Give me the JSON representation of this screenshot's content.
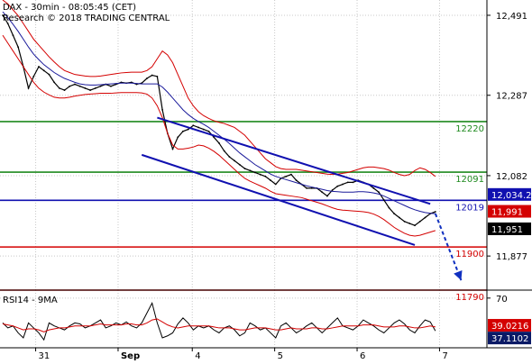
{
  "header": {
    "line1": "DAX - 30min - 08:05:45 (CET)",
    "line2": "Research © 2018 TRADING CENTRAL"
  },
  "colors": {
    "price": "#000000",
    "bollinger": "#d40000",
    "moving_average": "#1a1a9a",
    "support": "#d40000",
    "resistance": "#1f8a1f",
    "pivot": "#1010b0",
    "arrow": "#1030c0",
    "rsi": "#000000",
    "rsi_ma": "#d40000",
    "grid": "#c8c8c8"
  },
  "chart_data": [
    {
      "type": "line",
      "title": "",
      "ylim": [
        11790,
        12530
      ],
      "y_ticks": [
        "12,491",
        "12,287",
        "12,082",
        "11,877"
      ],
      "x_ticks": [
        "31",
        "Sep",
        "4",
        "5",
        "6",
        "7"
      ],
      "x_count": 85,
      "series": [
        {
          "name": "",
          "role": "price",
          "values": [
            12491,
            12470,
            12440,
            12410,
            12360,
            12305,
            12335,
            12360,
            12350,
            12340,
            12320,
            12305,
            12300,
            12310,
            12315,
            12310,
            12305,
            12300,
            12305,
            12310,
            12315,
            12310,
            12315,
            12320,
            12318,
            12320,
            12315,
            12318,
            12330,
            12338,
            12335,
            12250,
            12190,
            12150,
            12180,
            12195,
            12200,
            12210,
            12205,
            12200,
            12195,
            12180,
            12165,
            12145,
            12130,
            12120,
            12110,
            12100,
            12095,
            12090,
            12085,
            12080,
            12070,
            12060,
            12075,
            12080,
            12085,
            12070,
            12060,
            12050,
            12050,
            12050,
            12040,
            12030,
            12045,
            12055,
            12060,
            12065,
            12065,
            12070,
            12065,
            12060,
            12050,
            12040,
            12020,
            12000,
            11985,
            11975,
            11965,
            11960,
            11955,
            11965,
            11975,
            11985,
            11990
          ]
        },
        {
          "name": "",
          "role": "moving-average",
          "values": [
            12500,
            12485,
            12468,
            12450,
            12430,
            12410,
            12392,
            12378,
            12365,
            12355,
            12345,
            12337,
            12330,
            12325,
            12320,
            12316,
            12314,
            12313,
            12313,
            12314,
            12315,
            12316,
            12317,
            12318,
            12318,
            12318,
            12317,
            12316,
            12316,
            12316,
            12316,
            12308,
            12295,
            12280,
            12265,
            12250,
            12238,
            12228,
            12220,
            12213,
            12205,
            12195,
            12185,
            12175,
            12164,
            12152,
            12140,
            12130,
            12120,
            12110,
            12102,
            12094,
            12086,
            12080,
            12076,
            12072,
            12068,
            12064,
            12060,
            12056,
            12053,
            12050,
            12047,
            12044,
            12042,
            12041,
            12040,
            12040,
            12040,
            12041,
            12041,
            12040,
            12038,
            12035,
            12030,
            12024,
            12018,
            12012,
            12006,
            12000,
            11995,
            11991,
            11988,
            11986,
            11985
          ]
        },
        {
          "name": "",
          "role": "bollinger-upper",
          "values": [
            12530,
            12520,
            12505,
            12490,
            12470,
            12450,
            12430,
            12415,
            12400,
            12385,
            12372,
            12360,
            12350,
            12345,
            12340,
            12338,
            12336,
            12335,
            12335,
            12336,
            12338,
            12340,
            12342,
            12344,
            12345,
            12346,
            12346,
            12346,
            12350,
            12360,
            12380,
            12400,
            12390,
            12370,
            12340,
            12310,
            12280,
            12260,
            12245,
            12235,
            12228,
            12222,
            12218,
            12215,
            12210,
            12205,
            12195,
            12185,
            12170,
            12155,
            12140,
            12125,
            12115,
            12105,
            12100,
            12098,
            12098,
            12098,
            12096,
            12094,
            12092,
            12090,
            12088,
            12086,
            12085,
            12086,
            12088,
            12090,
            12094,
            12098,
            12102,
            12104,
            12104,
            12102,
            12100,
            12096,
            12090,
            12085,
            12082,
            12085,
            12095,
            12102,
            12098,
            12090,
            12080
          ]
        },
        {
          "name": "",
          "role": "bollinger-lower",
          "values": [
            12440,
            12420,
            12400,
            12380,
            12360,
            12340,
            12320,
            12305,
            12295,
            12288,
            12282,
            12280,
            12280,
            12282,
            12285,
            12287,
            12289,
            12290,
            12291,
            12292,
            12292,
            12292,
            12293,
            12294,
            12294,
            12294,
            12294,
            12293,
            12290,
            12280,
            12260,
            12230,
            12190,
            12160,
            12150,
            12150,
            12152,
            12155,
            12160,
            12158,
            12152,
            12144,
            12134,
            12122,
            12110,
            12098,
            12086,
            12075,
            12068,
            12062,
            12056,
            12050,
            12042,
            12036,
            12034,
            12032,
            12030,
            12028,
            12026,
            12022,
            12018,
            12014,
            12010,
            12005,
            12000,
            11996,
            11994,
            11993,
            11992,
            11991,
            11990,
            11988,
            11984,
            11978,
            11970,
            11960,
            11950,
            11942,
            11935,
            11930,
            11928,
            11930,
            11934,
            11938,
            11942
          ]
        }
      ],
      "horizontal_levels": [
        {
          "label": "12220",
          "value": 12220,
          "kind": "resistance"
        },
        {
          "label": "12091",
          "value": 12091,
          "kind": "resistance"
        },
        {
          "label": "12019",
          "value": 12019,
          "kind": "pivot"
        },
        {
          "label": "11900",
          "value": 11900,
          "kind": "support"
        },
        {
          "label": "11790",
          "value": 11790,
          "kind": "support"
        }
      ],
      "price_tags": [
        {
          "label": "12,034.2",
          "value": 12034,
          "style": "pivot"
        },
        {
          "label": "11,991",
          "value": 11991,
          "style": "highlight"
        },
        {
          "label": "11,951",
          "value": 11951,
          "style": "dark"
        }
      ],
      "channel": {
        "upper": {
          "from": [
            30,
            12230
          ],
          "to": [
            83,
            12010
          ]
        },
        "lower": {
          "from": [
            27,
            12135
          ],
          "to": [
            80,
            11905
          ]
        }
      },
      "arrow": {
        "from": [
          84,
          11985
        ],
        "to": [
          89,
          11815
        ]
      }
    },
    {
      "type": "line",
      "title": "RSI14 - 9MA",
      "ylim": [
        20,
        78
      ],
      "y_ticks": [
        "70"
      ],
      "series": [
        {
          "name": "",
          "role": "rsi",
          "values": [
            45,
            40,
            42,
            35,
            30,
            45,
            40,
            35,
            28,
            45,
            42,
            40,
            38,
            42,
            45,
            44,
            40,
            42,
            45,
            48,
            40,
            42,
            45,
            43,
            46,
            42,
            40,
            45,
            55,
            65,
            45,
            30,
            32,
            35,
            44,
            50,
            45,
            38,
            42,
            40,
            42,
            38,
            35,
            40,
            42,
            38,
            32,
            35,
            45,
            42,
            38,
            40,
            35,
            30,
            42,
            45,
            40,
            35,
            38,
            42,
            45,
            40,
            35,
            40,
            45,
            50,
            42,
            40,
            38,
            42,
            48,
            45,
            42,
            38,
            35,
            40,
            45,
            48,
            44,
            38,
            35,
            42,
            48,
            46,
            37
          ]
        },
        {
          "name": "",
          "role": "rsi-ma",
          "values": [
            44,
            43,
            42,
            40,
            38,
            39,
            39,
            38,
            36,
            38,
            39,
            40,
            40,
            41,
            42,
            42,
            42,
            42,
            43,
            44,
            43,
            43,
            43,
            43,
            44,
            44,
            43,
            43,
            45,
            48,
            49,
            46,
            43,
            41,
            40,
            41,
            42,
            42,
            42,
            42,
            42,
            41,
            40,
            40,
            40,
            39,
            38,
            38,
            39,
            40,
            40,
            40,
            39,
            38,
            38,
            39,
            40,
            39,
            39,
            39,
            40,
            40,
            39,
            39,
            40,
            41,
            42,
            42,
            42,
            42,
            43,
            43,
            43,
            42,
            41,
            41,
            41,
            42,
            42,
            41,
            40,
            40,
            41,
            42,
            41
          ]
        }
      ],
      "price_tags": [
        {
          "label": "39.0216",
          "value": 39.0,
          "style": "highlight"
        },
        {
          "label": "37.1102",
          "value": 37.1,
          "style": "dark-blue"
        }
      ]
    }
  ]
}
